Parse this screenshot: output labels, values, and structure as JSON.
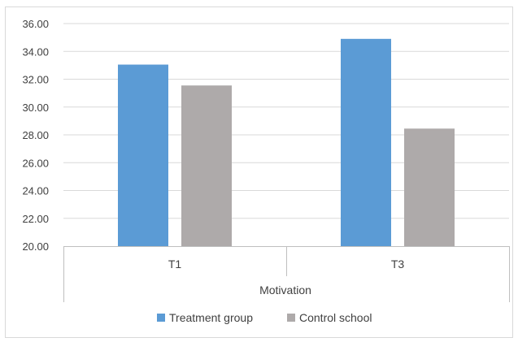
{
  "chart_data": {
    "type": "bar",
    "categories": [
      "T1",
      "T3"
    ],
    "group_label": "Motivation",
    "series": [
      {
        "name": "Treatment group",
        "values": [
          33.05,
          34.9
        ],
        "color": "#5b9bd5"
      },
      {
        "name": "Control school",
        "values": [
          31.55,
          28.45
        ],
        "color": "#aeaaaa"
      }
    ],
    "title": "",
    "xlabel": "",
    "ylabel": "",
    "ylim": [
      20,
      36
    ],
    "yticks": [
      "20.00",
      "22.00",
      "24.00",
      "26.00",
      "28.00",
      "30.00",
      "32.00",
      "34.00",
      "36.00"
    ],
    "grid": true,
    "legend_position": "bottom"
  },
  "colors": {
    "gridline": "#d9d9d9",
    "axis": "#bfbfbf",
    "frame": "#d9d9d9"
  }
}
